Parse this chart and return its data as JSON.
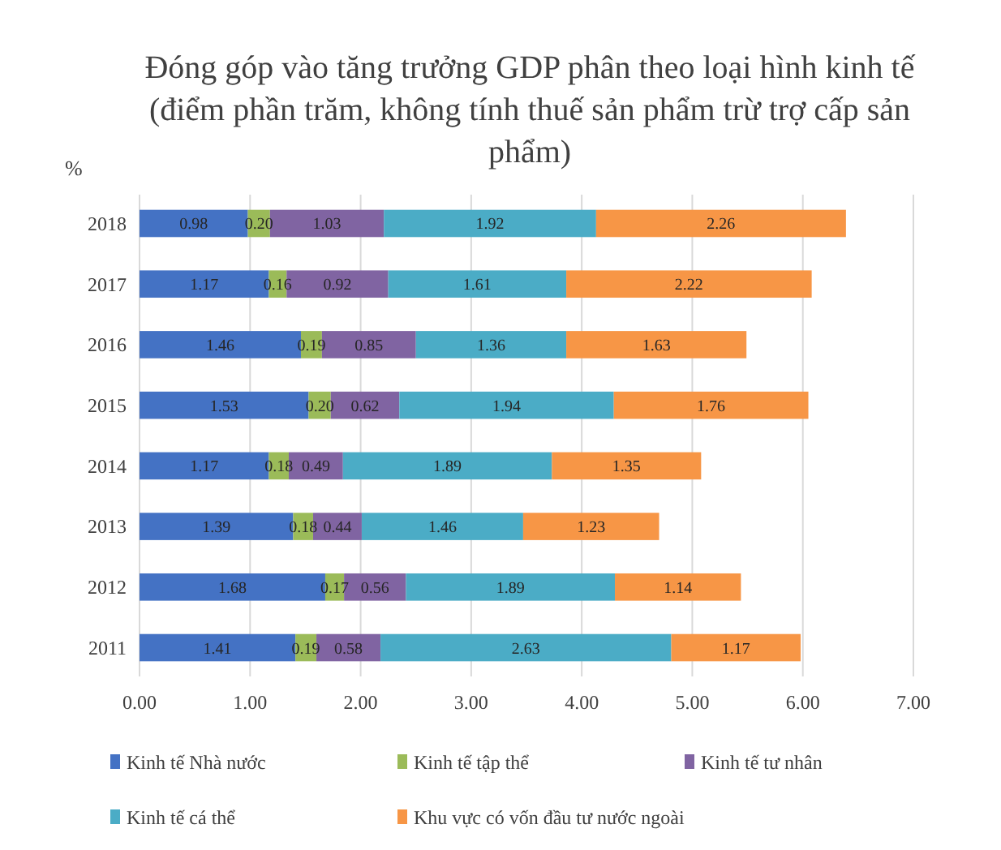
{
  "chart_data": {
    "type": "bar",
    "orientation": "horizontal",
    "stacked": true,
    "title": "Đóng góp vào tăng trưởng GDP phân theo loại hình kinh tế (điểm phần trăm, không tính thuế sản phẩm trừ trợ cấp sản phẩm)",
    "ylabel": "%",
    "categories": [
      "2018",
      "2017",
      "2016",
      "2015",
      "2014",
      "2013",
      "2012",
      "2011"
    ],
    "series": [
      {
        "name": "Kinh tế Nhà nước",
        "color": "#4472c4",
        "values": [
          0.98,
          1.17,
          1.46,
          1.53,
          1.17,
          1.39,
          1.68,
          1.41
        ],
        "value_labels": [
          "0.98",
          "1.17",
          "1.46",
          "1.53",
          "1.17",
          "1.39",
          "1.68",
          "1.41"
        ]
      },
      {
        "name": "Kinh tế tập thể",
        "color": "#9bbb59",
        "values": [
          0.2,
          0.16,
          0.19,
          0.2,
          0.18,
          0.18,
          0.17,
          0.19
        ],
        "value_labels": [
          "0.20",
          "0.16",
          "0.19",
          "0.20",
          "0.18",
          "0.18",
          "0.17",
          "0.19"
        ]
      },
      {
        "name": "Kinh tế tư nhân",
        "color": "#8064a2",
        "values": [
          1.03,
          0.92,
          0.85,
          0.62,
          0.49,
          0.44,
          0.56,
          0.58
        ],
        "value_labels": [
          "1.03",
          "0.92",
          "0.85",
          "0.62",
          "0.49",
          "0.44",
          "0.56",
          "0.58"
        ]
      },
      {
        "name": "Kinh tế cá thể",
        "color": "#4bacc6",
        "values": [
          1.92,
          1.61,
          1.36,
          1.94,
          1.89,
          1.46,
          1.89,
          2.63
        ],
        "value_labels": [
          "1.92",
          "1.61",
          "1.36",
          "1.94",
          "1.89",
          "1.46",
          "1.89",
          "2.63"
        ]
      },
      {
        "name": "Khu vực có vốn đầu tư nước ngoài",
        "color": "#f79646",
        "values": [
          2.26,
          2.22,
          1.63,
          1.76,
          1.35,
          1.23,
          1.14,
          1.17
        ],
        "value_labels": [
          "2.26",
          "2.22",
          "1.63",
          "1.76",
          "1.35",
          "1.23",
          "1.14",
          "1.17"
        ]
      }
    ],
    "xlim": [
      0,
      7
    ],
    "xticks": [
      {
        "value": 0,
        "label": "0.00"
      },
      {
        "value": 1,
        "label": "1.00"
      },
      {
        "value": 2,
        "label": "2.00"
      },
      {
        "value": 3,
        "label": "3.00"
      },
      {
        "value": 4,
        "label": "4.00"
      },
      {
        "value": 5,
        "label": "5.00"
      },
      {
        "value": 6,
        "label": "6.00"
      },
      {
        "value": 7,
        "label": "7.00"
      }
    ],
    "grid": "x",
    "legend": "bottom"
  }
}
